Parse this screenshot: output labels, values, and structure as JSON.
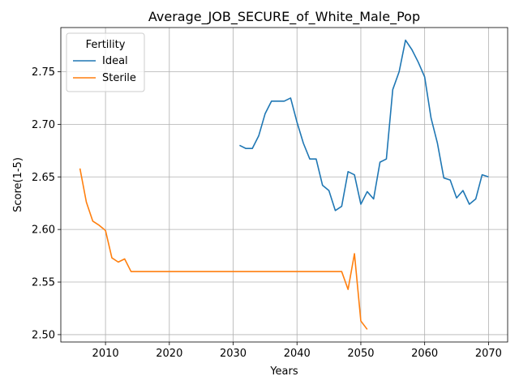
{
  "chart_data": {
    "type": "line",
    "title": "Average_JOB_SECURE_of_White_Male_Pop",
    "xlabel": "Years",
    "ylabel": "Score(1-5)",
    "xlim": [
      2003,
      2073
    ],
    "ylim": [
      2.493,
      2.792
    ],
    "xticks": [
      2010,
      2020,
      2030,
      2040,
      2050,
      2060,
      2070
    ],
    "yticks": [
      2.5,
      2.55,
      2.6,
      2.65,
      2.7,
      2.75
    ],
    "ytick_labels": [
      "2.50",
      "2.55",
      "2.60",
      "2.65",
      "2.70",
      "2.75"
    ],
    "grid": true,
    "legend": {
      "title": "Fertility",
      "position": "top-left"
    },
    "series": [
      {
        "name": "Ideal",
        "color": "#1f77b4",
        "x": [
          2031,
          2032,
          2033,
          2034,
          2035,
          2036,
          2037,
          2038,
          2039,
          2040,
          2041,
          2042,
          2043,
          2044,
          2045,
          2046,
          2047,
          2048,
          2049,
          2050,
          2051,
          2052,
          2053,
          2054,
          2055,
          2056,
          2057,
          2058,
          2059,
          2060,
          2061,
          2062,
          2063,
          2064,
          2065,
          2066,
          2067,
          2068,
          2069,
          2070
        ],
        "values": [
          2.68,
          2.677,
          2.677,
          2.689,
          2.71,
          2.722,
          2.722,
          2.722,
          2.725,
          2.702,
          2.682,
          2.667,
          2.667,
          2.642,
          2.637,
          2.618,
          2.622,
          2.655,
          2.652,
          2.624,
          2.636,
          2.629,
          2.664,
          2.667,
          2.733,
          2.75,
          2.78,
          2.771,
          2.759,
          2.745,
          2.706,
          2.682,
          2.649,
          2.647,
          2.63,
          2.637,
          2.624,
          2.629,
          2.652,
          2.65
        ]
      },
      {
        "name": "Sterile",
        "color": "#ff7f0e",
        "x": [
          2006,
          2007,
          2008,
          2009,
          2010,
          2011,
          2012,
          2013,
          2014,
          2015,
          2016,
          2017,
          2018,
          2019,
          2020,
          2021,
          2022,
          2023,
          2024,
          2025,
          2026,
          2027,
          2028,
          2029,
          2030,
          2031,
          2032,
          2033,
          2034,
          2035,
          2036,
          2037,
          2038,
          2039,
          2040,
          2041,
          2042,
          2043,
          2044,
          2045,
          2046,
          2047,
          2048,
          2049,
          2050,
          2051
        ],
        "values": [
          2.658,
          2.626,
          2.608,
          2.604,
          2.599,
          2.573,
          2.569,
          2.572,
          2.56,
          2.56,
          2.56,
          2.56,
          2.56,
          2.56,
          2.56,
          2.56,
          2.56,
          2.56,
          2.56,
          2.56,
          2.56,
          2.56,
          2.56,
          2.56,
          2.56,
          2.56,
          2.56,
          2.56,
          2.56,
          2.56,
          2.56,
          2.56,
          2.56,
          2.56,
          2.56,
          2.56,
          2.56,
          2.56,
          2.56,
          2.56,
          2.56,
          2.56,
          2.543,
          2.577,
          2.513,
          2.505
        ]
      }
    ]
  }
}
